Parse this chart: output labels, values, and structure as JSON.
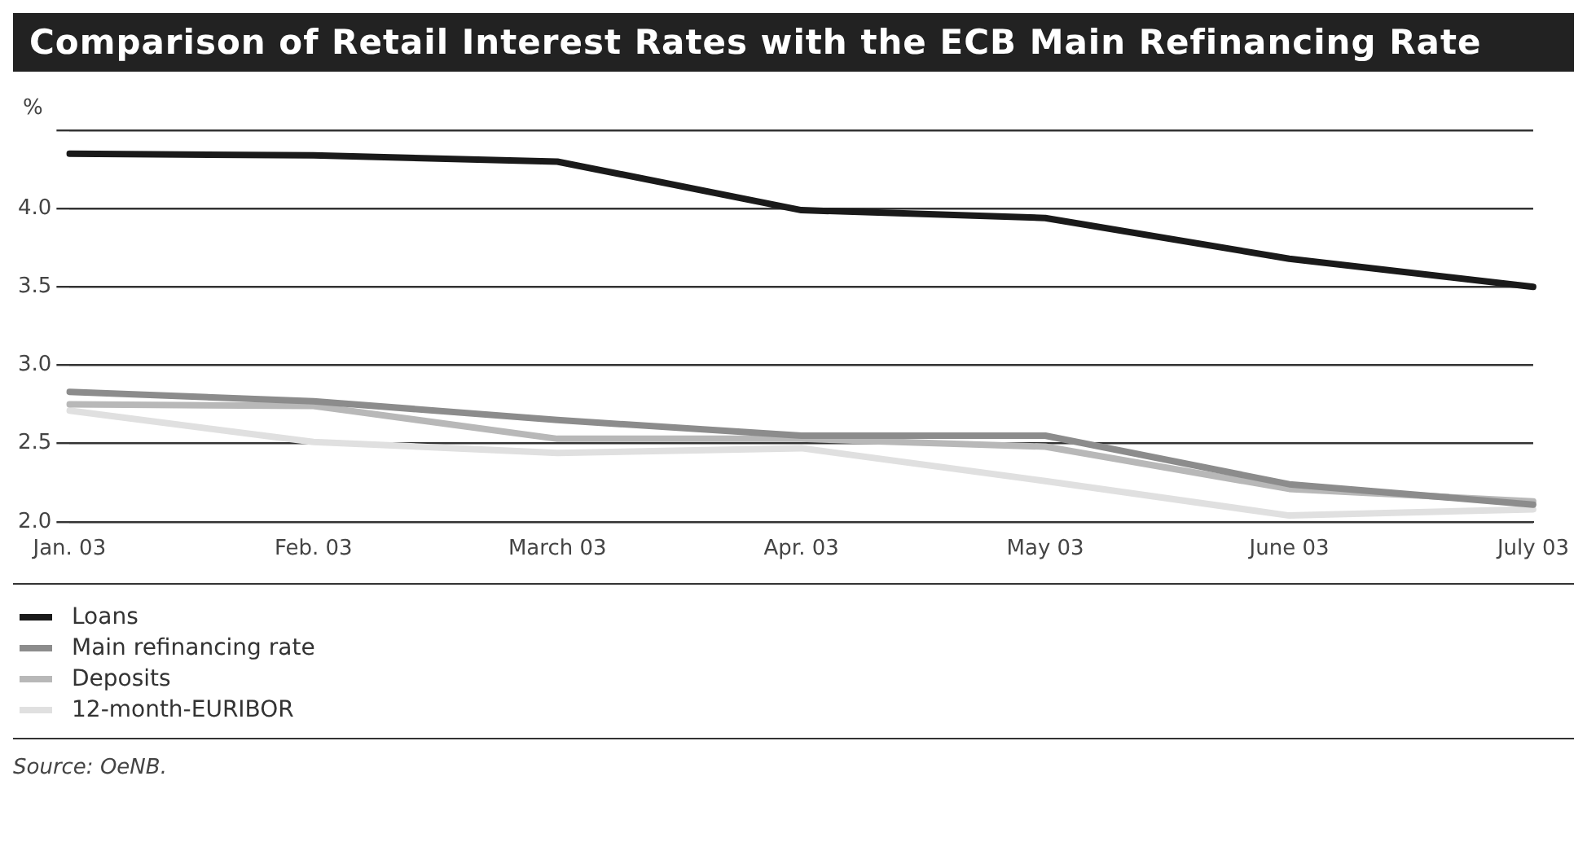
{
  "chart_data": {
    "type": "line",
    "title": "Comparison of Retail Interest Rates with the ECB Main Refinancing Rate",
    "ylabel": "%",
    "categories": [
      "Jan. 03",
      "Feb. 03",
      "March 03",
      "Apr. 03",
      "May 03",
      "June 03",
      "July 03"
    ],
    "series": [
      {
        "name": "Loans",
        "color": "#1a1a1a",
        "values": [
          4.35,
          4.34,
          4.3,
          3.99,
          3.94,
          3.68,
          3.5
        ]
      },
      {
        "name": "Main refinancing rate",
        "color": "#8c8c8c",
        "values": [
          2.83,
          2.77,
          2.65,
          2.55,
          2.55,
          2.24,
          2.11
        ]
      },
      {
        "name": "Deposits",
        "color": "#b8b8b8",
        "values": [
          2.75,
          2.74,
          2.53,
          2.53,
          2.48,
          2.21,
          2.13
        ]
      },
      {
        "name": "12-month-EURIBOR",
        "color": "#e0e0e0",
        "values": [
          2.71,
          2.51,
          2.44,
          2.47,
          2.26,
          2.04,
          2.08
        ]
      }
    ],
    "ylim": [
      2.0,
      4.5
    ],
    "yticks": [
      {
        "value": 2.0,
        "label": "2.0"
      },
      {
        "value": 2.5,
        "label": "2.5"
      },
      {
        "value": 3.0,
        "label": "3.0"
      },
      {
        "value": 3.5,
        "label": "3.5"
      },
      {
        "value": 4.0,
        "label": "4.0"
      },
      {
        "value": 4.5,
        "label": null
      }
    ],
    "grid": "y",
    "legend": "bottom left",
    "marker": "none",
    "line_style": "solid",
    "annotations": [
      "Source: OeNB."
    ]
  }
}
